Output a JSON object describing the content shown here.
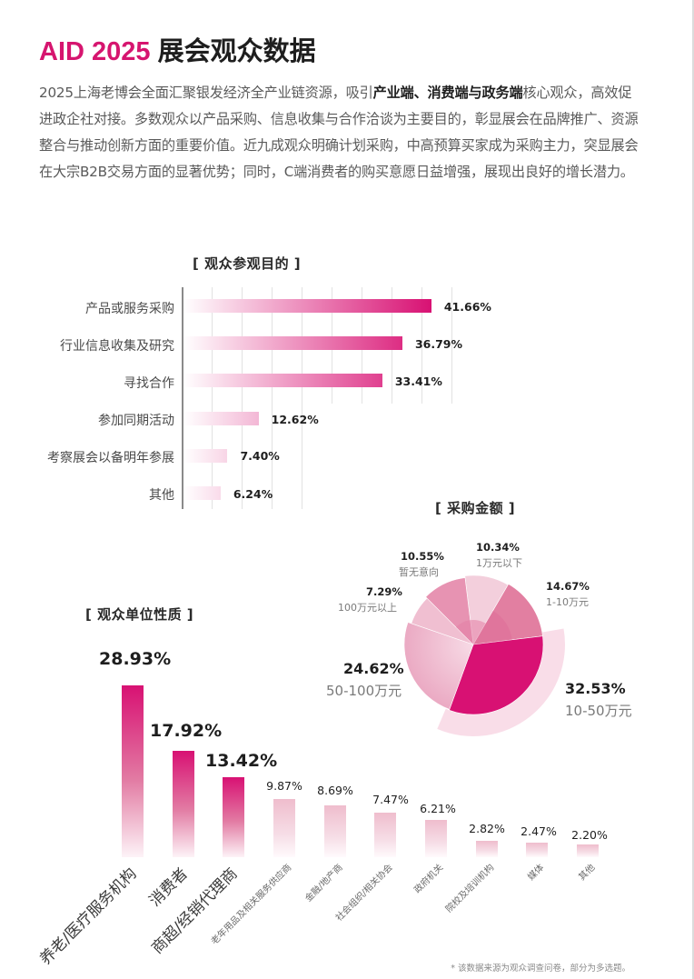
{
  "header": {
    "title_accent": "AID 2025",
    "title_main": "展会观众数据"
  },
  "intro": {
    "part1": "2025上海老博会全面汇聚银发经济全产业链资源，吸引",
    "bold": "产业端、消费端与政务端",
    "part2": "核心观众，高效促进政企社对接。多数观众以产品采购、信息收集与合作洽谈为主要目的，彰显展会在品牌推广、资源整合与推动创新方面的重要价值。近九成观众明确计划采购，中高预算买家成为采购主力，突显展会在大宗B2B交易方面的显著优势；同时，C端消费者的购买意愿日益增强，展现出良好的增长潜力。"
  },
  "colors": {
    "accent": "#d6156f",
    "bar_end": "#d81173",
    "text_dark": "#1e1e1e",
    "text_gray": "#5a5a5a"
  },
  "chart_data": [
    {
      "id": "visit_purpose",
      "type": "bar",
      "orientation": "horizontal",
      "title": "[ 观众参观目的 ]",
      "categories": [
        "产品或服务采购",
        "行业信息收集及研究",
        "寻找合作",
        "参加同期活动",
        "考察展会以备明年参展",
        "其他"
      ],
      "values": [
        41.66,
        36.79,
        33.41,
        12.62,
        7.4,
        6.24
      ],
      "value_labels": [
        "41.66%",
        "36.79%",
        "33.41%",
        "12.62%",
        "7.40%",
        "6.24%"
      ],
      "xlabel": "",
      "ylabel": "",
      "xlim": [
        0,
        45
      ],
      "grid": true,
      "unit": "%"
    },
    {
      "id": "purchase_amount",
      "type": "pie",
      "variant": "rose / variable-radius pie with highlighted slice",
      "title": "[ 采购金额 ]",
      "categories": [
        "1万元以下",
        "1-10万元",
        "10-50万元",
        "50-100万元",
        "100万元以上",
        "暂无意向"
      ],
      "values": [
        10.34,
        14.67,
        32.53,
        24.62,
        7.29,
        10.55
      ],
      "value_labels": [
        "10.34%",
        "14.67%",
        "32.53%",
        "24.62%",
        "7.29%",
        "10.55%"
      ],
      "highlight": "10-50万元",
      "unit": "%"
    },
    {
      "id": "audience_org_type",
      "type": "bar",
      "orientation": "vertical",
      "title": "[ 观众单位性质 ]",
      "categories": [
        "养老/医疗服务机构",
        "消费者",
        "商超/经销代理商",
        "老年用品及相关服务供应商",
        "金融/地产商",
        "社会组织/相关协会",
        "政府机关",
        "院校及培训机构",
        "媒体",
        "其他"
      ],
      "values": [
        28.93,
        17.92,
        13.42,
        9.87,
        8.69,
        7.47,
        6.21,
        2.82,
        2.47,
        2.2
      ],
      "value_labels": [
        "28.93%",
        "17.92%",
        "13.42%",
        "9.87%",
        "8.69%",
        "7.47%",
        "6.21%",
        "2.82%",
        "2.47%",
        "2.20%"
      ],
      "xlabel": "",
      "ylabel": "",
      "ylim": [
        0,
        30
      ],
      "grid": false,
      "unit": "%"
    }
  ],
  "purpose_chart": {
    "title": "[ 观众参观目的 ]",
    "rows": [
      {
        "label": "产品或服务采购",
        "value": "41.66%"
      },
      {
        "label": "行业信息收集及研究",
        "value": "36.79%"
      },
      {
        "label": "寻找合作",
        "value": "33.41%"
      },
      {
        "label": "参加同期活动",
        "value": "12.62%"
      },
      {
        "label": "考察展会以备明年参展",
        "value": "7.40%"
      },
      {
        "label": "其他",
        "value": "6.24%"
      }
    ]
  },
  "amount_chart": {
    "title": "[ 采购金额 ]",
    "slices": [
      {
        "label": "1万元以下",
        "value": "10.34%"
      },
      {
        "label": "1-10万元",
        "value": "14.67%"
      },
      {
        "label": "10-50万元",
        "value": "32.53%"
      },
      {
        "label": "50-100万元",
        "value": "24.62%"
      },
      {
        "label": "100万元以上",
        "value": "7.29%"
      },
      {
        "label": "暂无意向",
        "value": "10.55%"
      }
    ]
  },
  "org_chart": {
    "title": "[ 观众单位性质 ]",
    "columns": [
      {
        "label": "养老/医疗服务机构",
        "value": "28.93%"
      },
      {
        "label": "消费者",
        "value": "17.92%"
      },
      {
        "label": "商超/经销代理商",
        "value": "13.42%"
      },
      {
        "label": "老年用品及相关服务供应商",
        "value": "9.87%"
      },
      {
        "label": "金融/地产商",
        "value": "8.69%"
      },
      {
        "label": "社会组织/相关协会",
        "value": "7.47%"
      },
      {
        "label": "政府机关",
        "value": "6.21%"
      },
      {
        "label": "院校及培训机构",
        "value": "2.82%"
      },
      {
        "label": "媒体",
        "value": "2.47%"
      },
      {
        "label": "其他",
        "value": "2.20%"
      }
    ]
  },
  "footnote": "* 该数据来源为观众调查问卷，部分为多选题。"
}
